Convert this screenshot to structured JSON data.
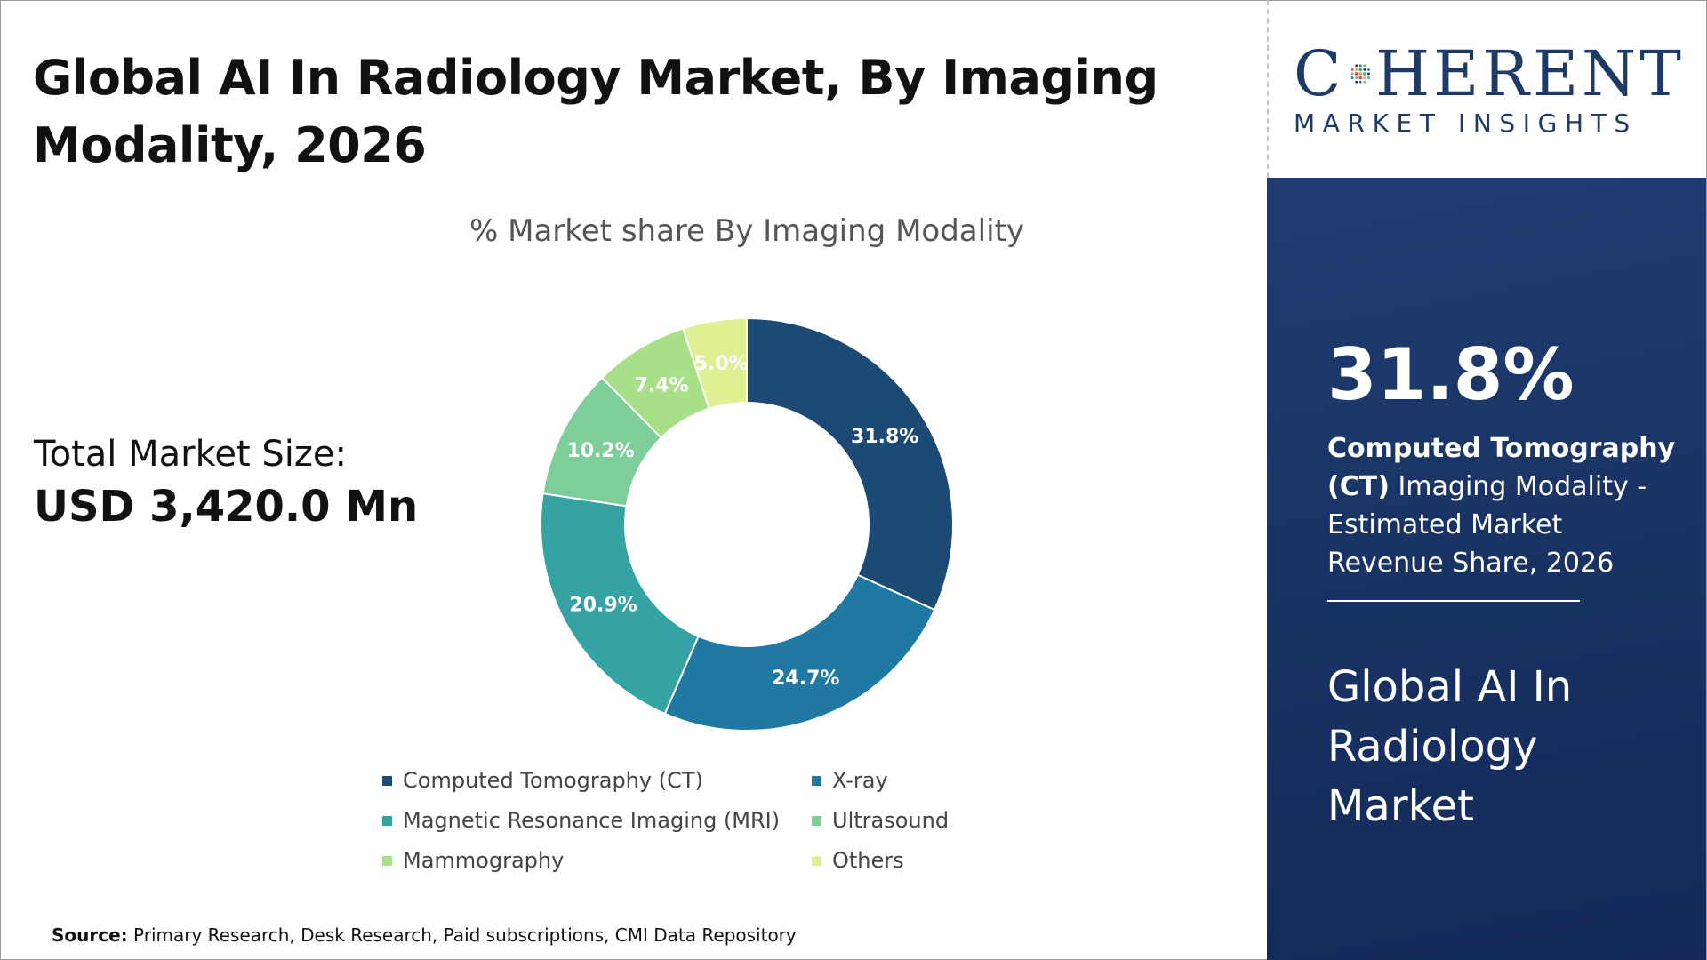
{
  "header": {
    "title": "Global AI In Radiology Market, By Imaging Modality, 2026"
  },
  "logo": {
    "top_left": "C",
    "top_right": "HERENT",
    "bottom": "MARKET INSIGHTS"
  },
  "total_market": {
    "label": "Total Market Size:",
    "value": "USD 3,420.0 Mn"
  },
  "chart_data": {
    "type": "pie",
    "donut": true,
    "title": "% Market share By Imaging Modality",
    "categories": [
      "Computed Tomography (CT)",
      "X-ray",
      "Magnetic Resonance Imaging (MRI)",
      "Ultrasound",
      "Mammography",
      "Others"
    ],
    "values": [
      31.8,
      24.7,
      20.9,
      10.2,
      7.4,
      5.0
    ],
    "labels": [
      "31.8%",
      "24.7%",
      "20.9%",
      "10.2%",
      "7.4%",
      "5.0%"
    ],
    "colors": [
      "#1c4a75",
      "#1f79a3",
      "#35a3a3",
      "#7dce98",
      "#a8e089",
      "#dff093"
    ],
    "legend_position": "bottom"
  },
  "source": {
    "label": "Source:",
    "text": "Primary Research, Desk Research, Paid subscriptions, CMI Data Repository"
  },
  "side_panel": {
    "big_value": "31.8%",
    "desc_bold": "Computed Tomography (CT)",
    "desc_rest": " Imaging Modality - Estimated Market Revenue Share, 2026",
    "market_name": "Global AI In Radiology Market",
    "background_color": "#1a3567"
  }
}
